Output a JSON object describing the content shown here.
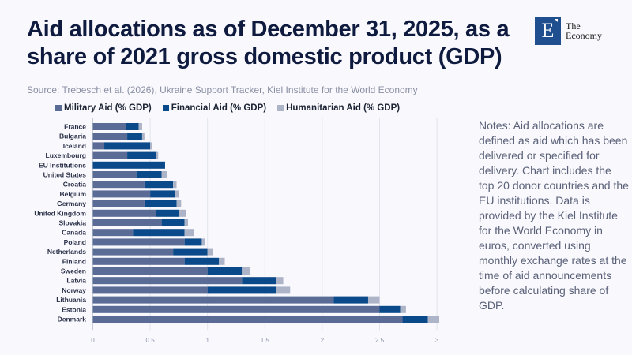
{
  "header": {
    "title": "Aid allocations as of December 31, 2025, as a share of 2021 gross domestic product (GDP)",
    "source": "Source: Trebesch et al. (2026), Ukraine Support Tracker, Kiel Institute for the World Economy",
    "logo": {
      "letter": "E",
      "line1": "The",
      "line2": "Economy",
      "color": "#1f4f8f"
    }
  },
  "notes": "Notes: Aid allocations are defined as aid which has been delivered or specified for delivery. Chart includes the top 20 donor countries and the EU institutions. Data is provided by the Kiel Institute for the World Economy in euros, converted using monthly exchange rates at the time of aid announcements before calculating share of GDP.",
  "chart_data": {
    "type": "bar",
    "orientation": "horizontal",
    "stacked": true,
    "title": "",
    "xlabel": "",
    "ylabel": "",
    "xlim": [
      0,
      3
    ],
    "xticks": [
      "0",
      "0.5",
      "1",
      "1.5",
      "2",
      "2.5",
      "3"
    ],
    "xtick_values": [
      0,
      0.5,
      1,
      1.5,
      2,
      2.5,
      3
    ],
    "grid": true,
    "legend_position": "top",
    "categories": [
      "France",
      "Bulgaria",
      "Iceland",
      "Luxembourg",
      "EU Institutions",
      "United States",
      "Croatia",
      "Belgium",
      "Germany",
      "United Kingdom",
      "Slovakia",
      "Canada",
      "Poland",
      "Netherlands",
      "Finland",
      "Sweden",
      "Latvia",
      "Norway",
      "Lithuania",
      "Estonia",
      "Denmark"
    ],
    "series": [
      {
        "name": "Military Aid (% GDP)",
        "color": "#5a6b96",
        "values": [
          0.29,
          0.3,
          0.1,
          0.3,
          0.0,
          0.38,
          0.45,
          0.5,
          0.45,
          0.55,
          0.6,
          0.35,
          0.8,
          0.7,
          0.8,
          1.0,
          1.3,
          1.0,
          2.1,
          2.5,
          2.7
        ]
      },
      {
        "name": "Financial Aid (% GDP)",
        "color": "#0b4a8a",
        "values": [
          0.11,
          0.13,
          0.4,
          0.25,
          0.63,
          0.22,
          0.25,
          0.22,
          0.28,
          0.2,
          0.2,
          0.45,
          0.15,
          0.3,
          0.3,
          0.3,
          0.3,
          0.6,
          0.3,
          0.18,
          0.22
        ]
      },
      {
        "name": "Humanitarian Aid (% GDP)",
        "color": "#aeb4c8",
        "values": [
          0.03,
          0.02,
          0.02,
          0.02,
          0.0,
          0.05,
          0.03,
          0.03,
          0.04,
          0.06,
          0.03,
          0.08,
          0.03,
          0.05,
          0.05,
          0.07,
          0.06,
          0.12,
          0.1,
          0.05,
          0.1
        ]
      }
    ]
  }
}
